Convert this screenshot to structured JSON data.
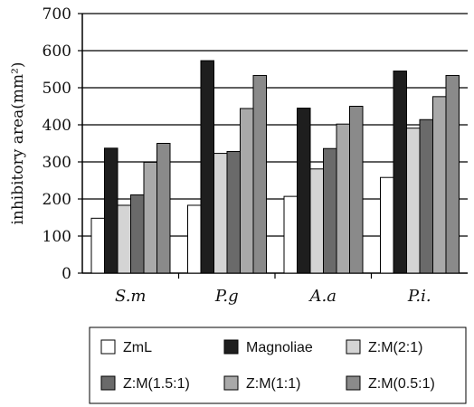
{
  "chart_data": {
    "type": "bar",
    "categories": [
      "S.m",
      "P.g",
      "A.a",
      "P.i."
    ],
    "series": [
      {
        "name": "ZmL",
        "color": "#ffffff",
        "values": [
          148,
          183,
          207,
          258
        ]
      },
      {
        "name": "Magnoliae",
        "color": "#1e1e1e",
        "values": [
          337,
          573,
          445,
          545
        ]
      },
      {
        "name": "Z:M(2:1)",
        "color": "#d4d4d4",
        "values": [
          183,
          323,
          281,
          391
        ]
      },
      {
        "name": "Z:M(1.5:1)",
        "color": "#6a6a6a",
        "values": [
          211,
          328,
          336,
          414
        ]
      },
      {
        "name": "Z:M(1:1)",
        "color": "#a9a9a9",
        "values": [
          299,
          444,
          402,
          476
        ]
      },
      {
        "name": "Z:M(0.5:1)",
        "color": "#8a8a8a",
        "values": [
          350,
          533,
          450,
          533
        ]
      }
    ],
    "ylabel": "inhibitory area(mm²)",
    "yticks": [
      0,
      100,
      200,
      300,
      400,
      500,
      600,
      700
    ],
    "ylim": [
      0,
      700
    ],
    "grid": "horizontal",
    "legend": "bottom"
  }
}
